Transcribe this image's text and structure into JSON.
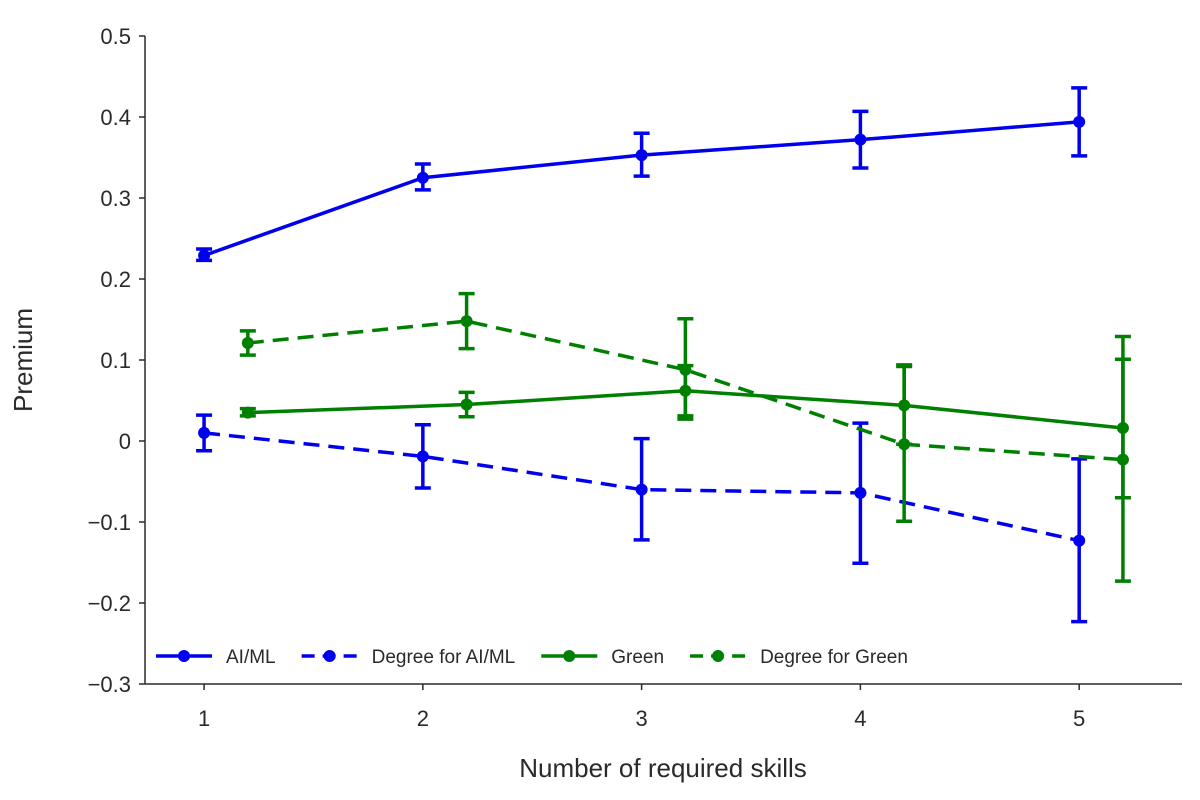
{
  "chart_data": {
    "type": "line",
    "title": "",
    "xlabel": "Number of required skills",
    "ylabel": "Premium",
    "x": [
      1,
      2,
      3,
      4,
      5
    ],
    "xlim": [
      0.73,
      5.47
    ],
    "ylim": [
      -0.3,
      0.5
    ],
    "x_ticks": [
      1,
      2,
      3,
      4,
      5
    ],
    "x_tick_labels": [
      "1",
      "2",
      "3",
      "4",
      "5"
    ],
    "y_ticks": [
      -0.3,
      -0.2,
      -0.1,
      0,
      0.1,
      0.2,
      0.3,
      0.4,
      0.5
    ],
    "y_tick_labels": [
      "−0.3",
      "−0.2",
      "−0.1",
      "0",
      "0.1",
      "0.2",
      "0.3",
      "0.4",
      "0.5"
    ],
    "grid": false,
    "legend_position": "bottom-left",
    "series": [
      {
        "name": "AI/ML",
        "color": "#0000ee",
        "dash": "solid",
        "x": [
          1,
          2,
          3,
          4,
          5
        ],
        "y": [
          0.229,
          0.325,
          0.353,
          0.372,
          0.394
        ],
        "err_low": [
          0.223,
          0.31,
          0.327,
          0.337,
          0.352
        ],
        "err_high": [
          0.237,
          0.342,
          0.38,
          0.407,
          0.436
        ]
      },
      {
        "name": "Degree for AI/ML",
        "color": "#0000ee",
        "dash": "dashed",
        "x": [
          1,
          2,
          3,
          4,
          5
        ],
        "y": [
          0.01,
          -0.019,
          -0.06,
          -0.064,
          -0.123
        ],
        "err_low": [
          -0.012,
          -0.058,
          -0.122,
          -0.151,
          -0.223
        ],
        "err_high": [
          0.032,
          0.02,
          0.003,
          0.022,
          -0.022
        ]
      },
      {
        "name": "Green",
        "color": "#008000",
        "dash": "solid",
        "x": [
          1.2,
          2.2,
          3.2,
          4.2,
          5.2
        ],
        "y": [
          0.035,
          0.045,
          0.062,
          0.044,
          0.016
        ],
        "err_low": [
          0.031,
          0.03,
          0.031,
          -0.004,
          -0.07
        ],
        "err_high": [
          0.04,
          0.06,
          0.093,
          0.092,
          0.101
        ]
      },
      {
        "name": "Degree for Green",
        "color": "#008000",
        "dash": "dashed",
        "x": [
          1.2,
          2.2,
          3.2,
          4.2,
          5.2
        ],
        "y": [
          0.121,
          0.148,
          0.088,
          -0.004,
          -0.023
        ],
        "err_low": [
          0.106,
          0.114,
          0.027,
          -0.099,
          -0.173
        ],
        "err_high": [
          0.136,
          0.182,
          0.151,
          0.094,
          0.129
        ]
      }
    ]
  }
}
